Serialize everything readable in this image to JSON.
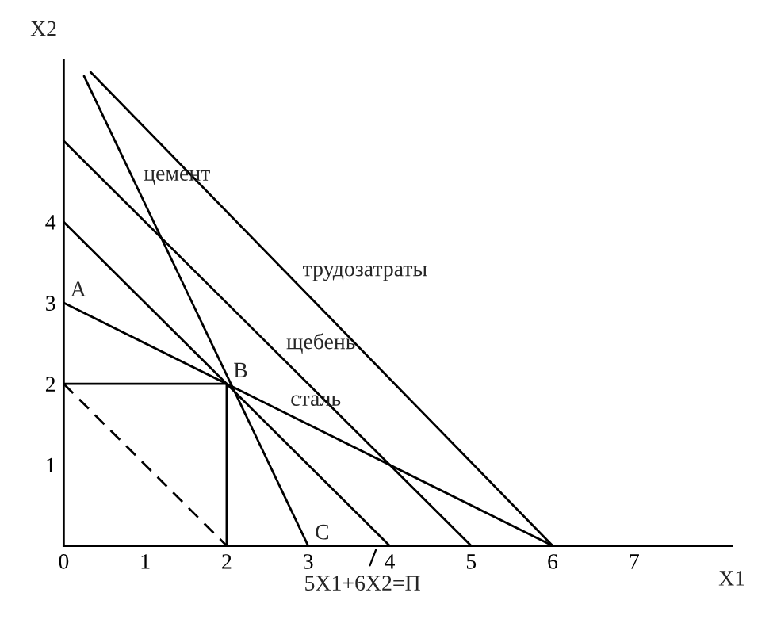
{
  "chart_data": {
    "type": "line",
    "xlabel": "X1",
    "ylabel": "X2",
    "xlim": [
      0,
      8.2
    ],
    "ylim": [
      0,
      6.0
    ],
    "xticks": [
      0,
      1,
      2,
      3,
      4,
      5,
      6,
      7
    ],
    "yticks": [
      1,
      2,
      3,
      4
    ],
    "grid": false,
    "legend": false,
    "marker": "none",
    "series": [
      {
        "color": "#000000",
        "x": [
          0.33,
          6
        ],
        "values": [
          5.85,
          0
        ]
      },
      {
        "color": "#000000",
        "x": [
          0,
          5
        ],
        "values": [
          5,
          0
        ]
      },
      {
        "color": "#000000",
        "x": [
          0.25,
          3
        ],
        "values": [
          5.8,
          0
        ]
      },
      {
        "color": "#000000",
        "x": [
          0,
          4
        ],
        "values": [
          4,
          0
        ]
      },
      {
        "color": "#000000",
        "x": [
          0,
          6
        ],
        "values": [
          3,
          0
        ]
      },
      {
        "color": "#000000",
        "x": [
          0,
          2,
          2
        ],
        "values": [
          2,
          2,
          0
        ]
      },
      {
        "color": "#000000",
        "x": [
          0,
          2
        ],
        "values": [
          2,
          0
        ],
        "line_style": "dashed"
      }
    ],
    "annotations": [
      {
        "text": "цемент",
        "x": 0.9,
        "y": 4.43
      },
      {
        "text": "трудозатраты",
        "x": 2.85,
        "y": 3.25
      },
      {
        "text": "щебень",
        "x": 2.65,
        "y": 2.35
      },
      {
        "text": "сталь",
        "x": 2.7,
        "y": 1.65
      },
      {
        "text": "A",
        "x": 0,
        "y": 3
      },
      {
        "text": "B",
        "x": 2,
        "y": 2
      },
      {
        "text": "C",
        "x": 3,
        "y": 0
      },
      {
        "text": "5X1+6X2=П",
        "x": 3.85,
        "y": 0
      }
    ]
  }
}
